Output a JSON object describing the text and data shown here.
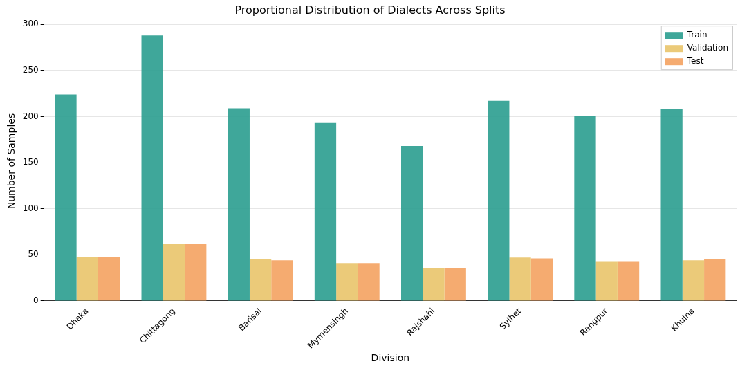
{
  "chart_data": {
    "type": "bar",
    "title": "Proportional Distribution of Dialects Across Splits",
    "xlabel": "Division",
    "ylabel": "Number of Samples",
    "categories": [
      "Dhaka",
      "Chittagong",
      "Barisal",
      "Mymensingh",
      "Rajshahi",
      "Sylhet",
      "Rangpur",
      "Khulna"
    ],
    "series": [
      {
        "name": "Train",
        "color": "#2a9d8f",
        "values": [
          224,
          288,
          209,
          193,
          168,
          217,
          201,
          208
        ]
      },
      {
        "name": "Validation",
        "color": "#e9c46a",
        "values": [
          48,
          62,
          45,
          41,
          36,
          47,
          43,
          44
        ]
      },
      {
        "name": "Test",
        "color": "#f4a261",
        "values": [
          48,
          62,
          44,
          41,
          36,
          46,
          43,
          45
        ]
      }
    ],
    "ylim": [
      0,
      303
    ],
    "yticks": [
      0,
      50,
      100,
      150,
      200,
      250,
      300
    ],
    "grid": "y",
    "legend": "top right"
  }
}
